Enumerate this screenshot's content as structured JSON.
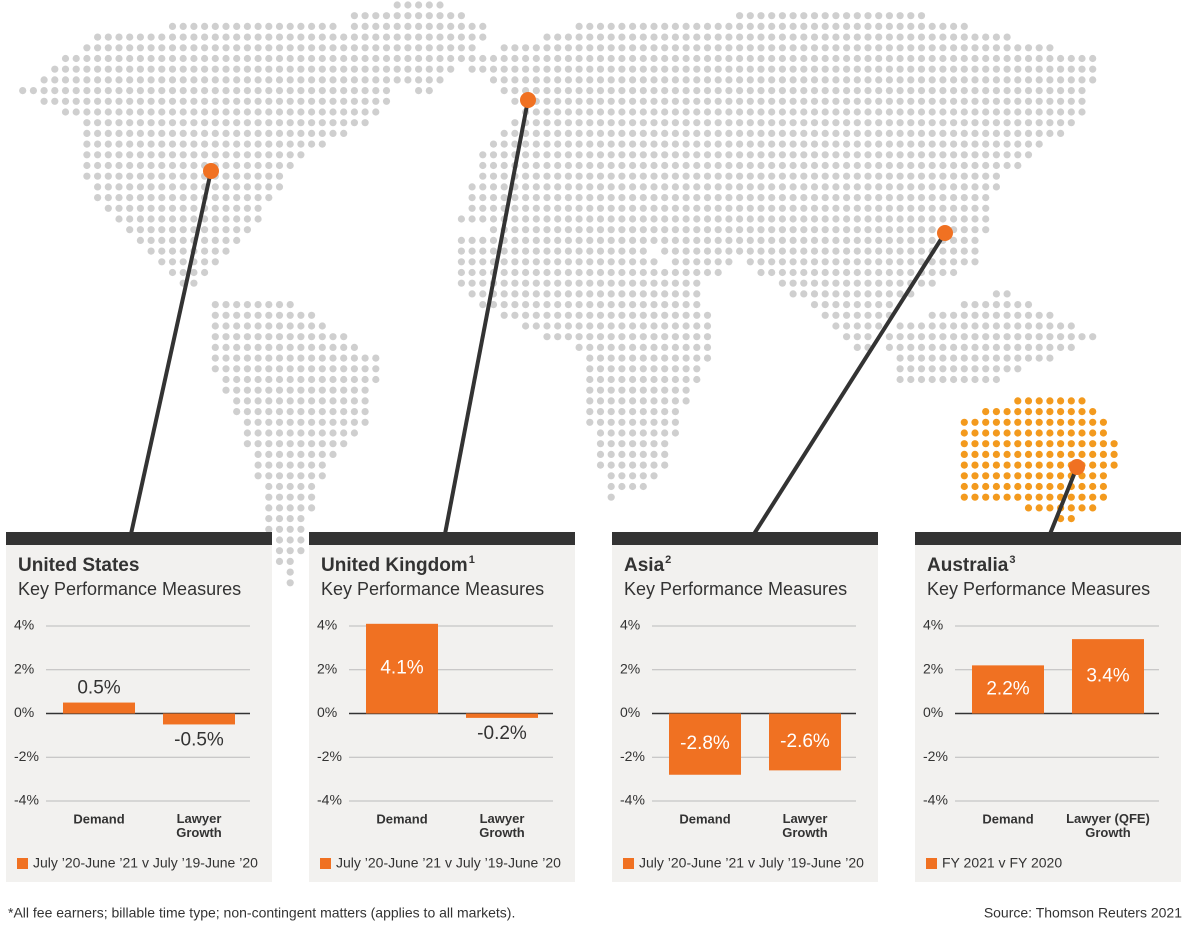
{
  "chart_data": [
    {
      "type": "bar",
      "title": "United States",
      "subtitle": "Key Performance Measures",
      "categories": [
        "Demand",
        "Lawyer Growth"
      ],
      "series": [
        {
          "name": "July ’20-June ’21 v July ’19-June ’20",
          "color": "#f07122",
          "values": [
            0.5,
            -0.5
          ],
          "value_labels": [
            "0.5%",
            "-0.5%"
          ]
        }
      ],
      "ylim": [
        -4,
        4
      ],
      "yticks": [
        {
          "value": 4,
          "label": "4%"
        },
        {
          "value": 2,
          "label": "2%"
        },
        {
          "value": 0,
          "label": "0%"
        },
        {
          "value": -2,
          "label": "-2%"
        },
        {
          "value": -4,
          "label": "-4%"
        }
      ],
      "grid": true
    },
    {
      "type": "bar",
      "title": "United Kingdom",
      "title_footnote": "1",
      "subtitle": "Key Performance Measures",
      "categories": [
        "Demand",
        "Lawyer Growth"
      ],
      "series": [
        {
          "name": "July ’20-June ’21 v July ’19-June ’20",
          "color": "#f07122",
          "values": [
            4.1,
            -0.2
          ],
          "value_labels": [
            "4.1%",
            "-0.2%"
          ]
        }
      ],
      "ylim": [
        -4,
        4
      ],
      "yticks": [
        {
          "value": 4,
          "label": "4%"
        },
        {
          "value": 2,
          "label": "2%"
        },
        {
          "value": 0,
          "label": "0%"
        },
        {
          "value": -2,
          "label": "-2%"
        },
        {
          "value": -4,
          "label": "-4%"
        }
      ],
      "grid": true
    },
    {
      "type": "bar",
      "title": "Asia",
      "title_footnote": "2",
      "subtitle": "Key Performance Measures",
      "categories": [
        "Demand",
        "Lawyer Growth"
      ],
      "series": [
        {
          "name": "July ’20-June ’21 v July ’19-June ’20",
          "color": "#f07122",
          "values": [
            -2.8,
            -2.6
          ],
          "value_labels": [
            "-2.8%",
            "-2.6%"
          ]
        }
      ],
      "ylim": [
        -4,
        4
      ],
      "yticks": [
        {
          "value": 4,
          "label": "4%"
        },
        {
          "value": 2,
          "label": "2%"
        },
        {
          "value": 0,
          "label": "0%"
        },
        {
          "value": -2,
          "label": "-2%"
        },
        {
          "value": -4,
          "label": "-4%"
        }
      ],
      "grid": true
    },
    {
      "type": "bar",
      "title": "Australia",
      "title_footnote": "3",
      "title_color": "#f07122",
      "subtitle": "Key Performance Measures",
      "categories": [
        "Demand",
        "Lawyer (QFE) Growth"
      ],
      "series": [
        {
          "name": "FY 2021 v FY 2020",
          "color": "#f07122",
          "values": [
            2.2,
            3.4
          ],
          "value_labels": [
            "2.2%",
            "3.4%"
          ]
        }
      ],
      "ylim": [
        -4,
        4
      ],
      "yticks": [
        {
          "value": 4,
          "label": "4%"
        },
        {
          "value": 2,
          "label": "2%"
        },
        {
          "value": 0,
          "label": "0%"
        },
        {
          "value": -2,
          "label": "-2%"
        },
        {
          "value": -4,
          "label": "-4%"
        }
      ],
      "grid": true
    }
  ],
  "footnote": "*All fee earners; billable time type; non-contingent matters (applies to all markets).",
  "source": "Source: Thomson Reuters 2021"
}
